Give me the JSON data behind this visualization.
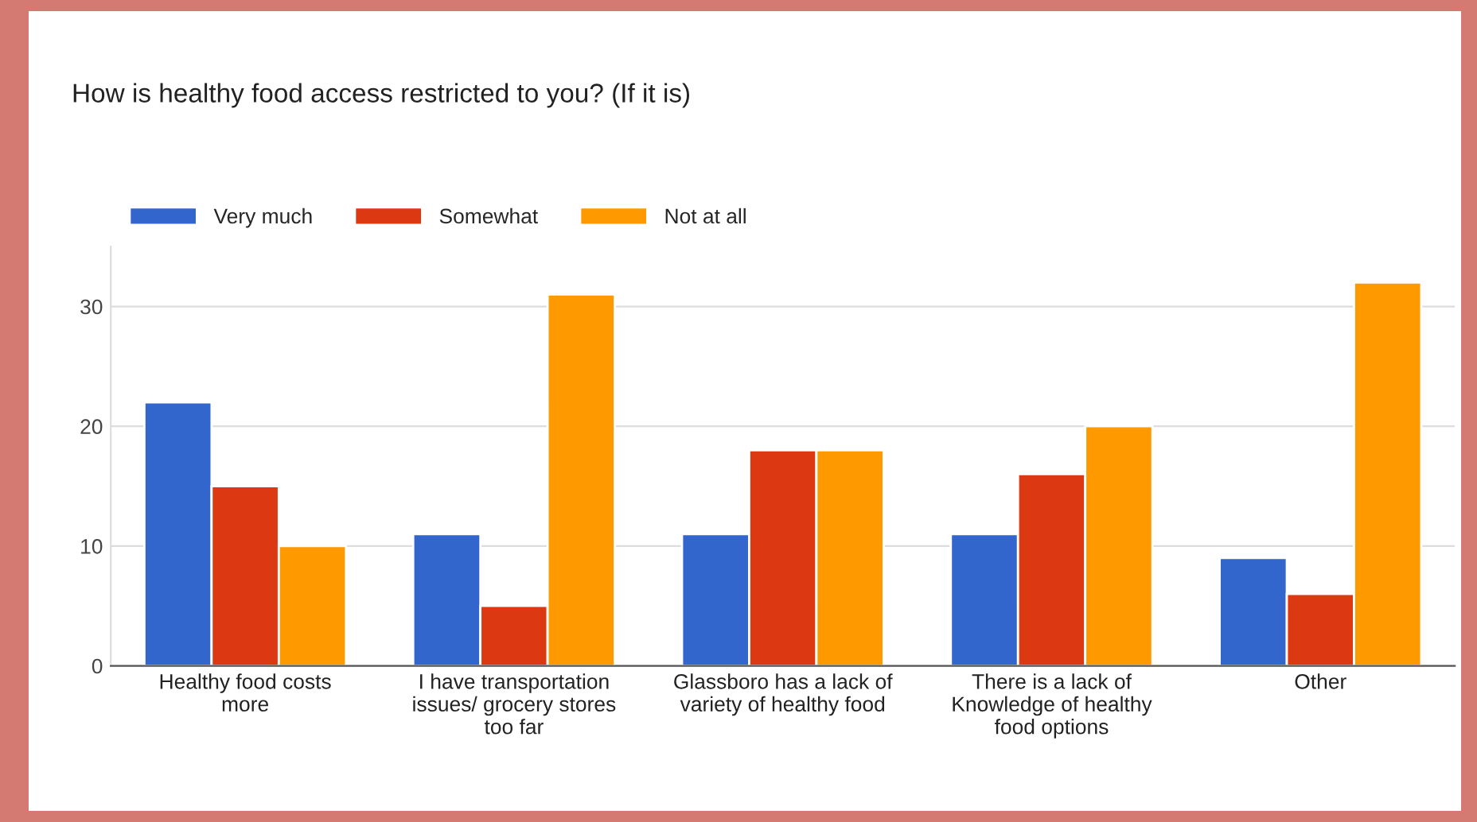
{
  "chart_data": {
    "type": "bar",
    "title": "How is healthy food access restricted to you? (If it is)",
    "categories": [
      "Healthy food costs\nmore",
      "I have transportation\nissues/ grocery stores\ntoo far",
      "Glassboro has a lack of\nvariety of healthy food",
      "There is a lack of\nKnowledge of healthy\nfood options",
      "Other"
    ],
    "series": [
      {
        "name": "Very much",
        "color": "#3366cc",
        "values": [
          22,
          11,
          11,
          11,
          9
        ]
      },
      {
        "name": "Somewhat",
        "color": "#dc3912",
        "values": [
          15,
          5,
          18,
          16,
          6
        ]
      },
      {
        "name": "Not at all",
        "color": "#ff9900",
        "values": [
          10,
          31,
          18,
          20,
          32
        ]
      }
    ],
    "ylim": [
      0,
      35
    ],
    "yticks": [
      0,
      10,
      20,
      30
    ],
    "grid": "y",
    "legend": "top left"
  }
}
